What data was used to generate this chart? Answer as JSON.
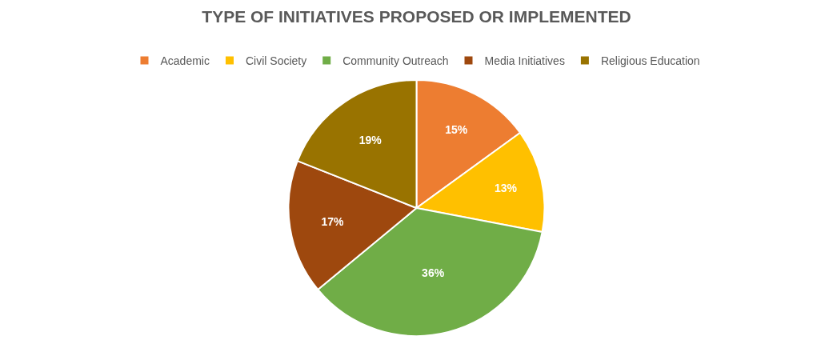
{
  "chart_data": {
    "type": "pie",
    "title": "TYPE OF INITIATIVES PROPOSED OR IMPLEMENTED",
    "categories": [
      "Academic",
      "Civil Society",
      "Community Outreach",
      "Media Initiatives",
      "Religious Education"
    ],
    "values": [
      15,
      13,
      36,
      17,
      19
    ],
    "colors": [
      "#ed7d31",
      "#ffc000",
      "#70ad47",
      "#9e480e",
      "#997300"
    ],
    "value_labels": [
      "15%",
      "13%",
      "36%",
      "17%",
      "19%"
    ],
    "legend": "top"
  }
}
